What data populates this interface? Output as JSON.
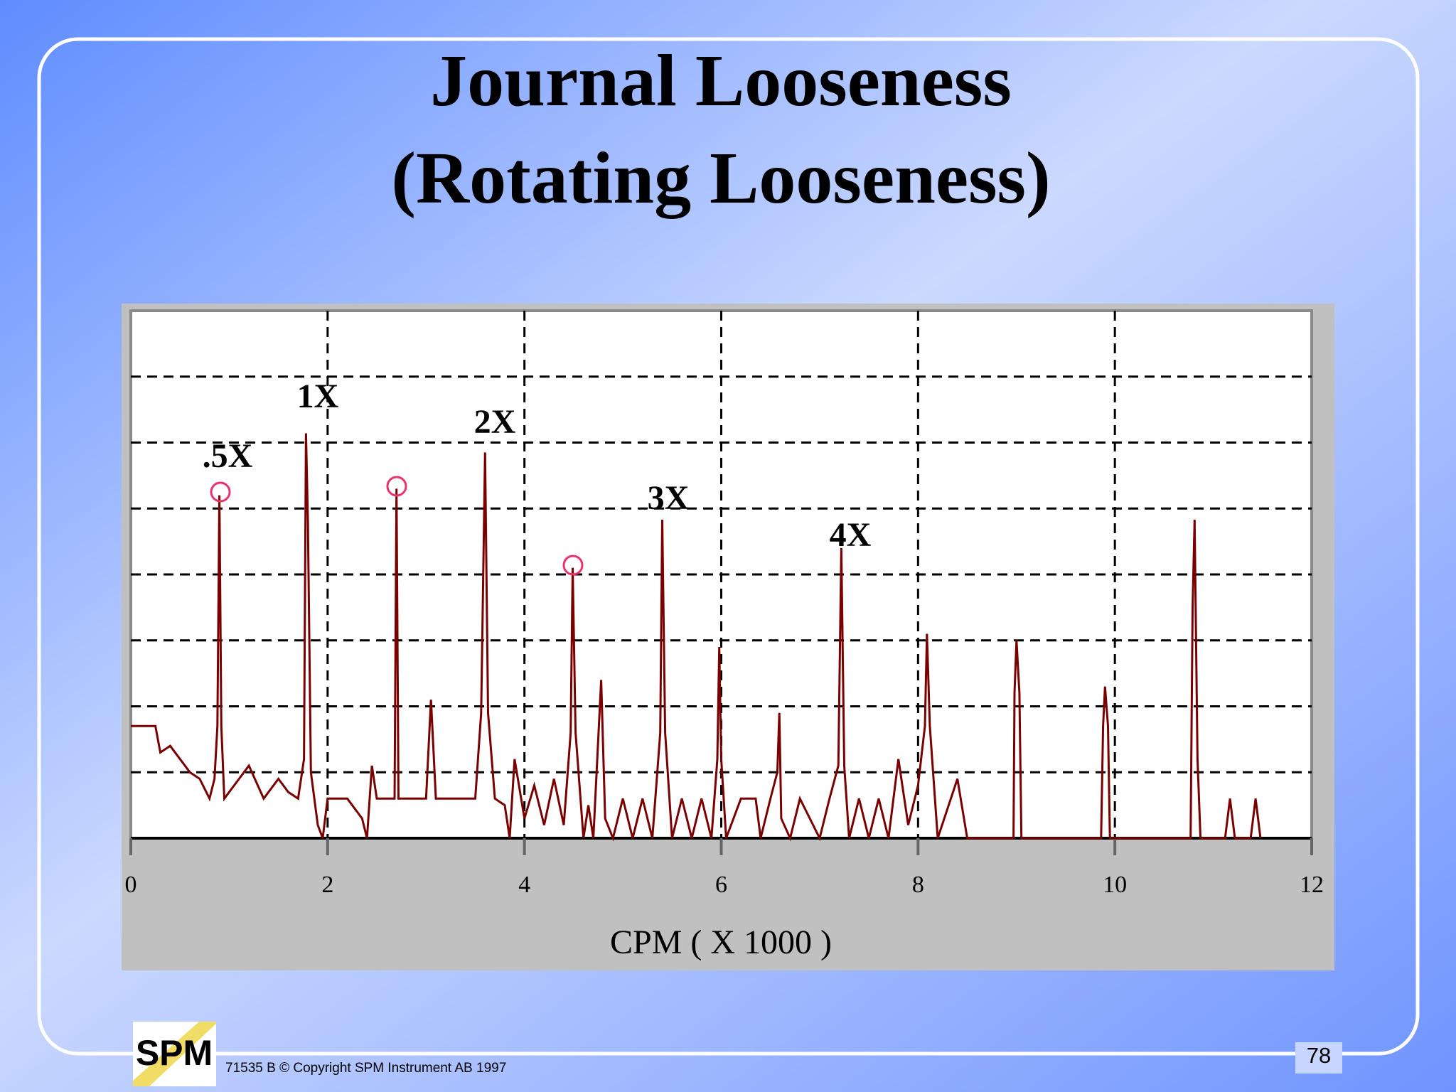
{
  "slide": {
    "title_lines": [
      "Journal  Looseness",
      "(Rotating Looseness)"
    ],
    "logo_text": "SPM",
    "footer": "71535 B  © Copyright SPM Instrument AB 1997",
    "page_number": "78"
  },
  "chart_data": {
    "type": "line",
    "xlabel": "CPM ( X 1000 )",
    "annotations": [
      ".5X",
      "1X",
      "2X",
      "3X",
      "4X"
    ],
    "xlim": [
      0,
      12
    ],
    "xticks": [
      0,
      2,
      4,
      6,
      8,
      10,
      12
    ],
    "ylim": [
      0,
      8
    ],
    "yticks": [
      0,
      1,
      2,
      3,
      4,
      5,
      6,
      7,
      8
    ],
    "grid": true,
    "x": [
      0,
      0.25,
      0.3,
      0.4,
      0.5,
      0.6,
      0.7,
      0.8,
      0.85,
      0.88,
      0.9,
      0.92,
      0.95,
      1.1,
      1.2,
      1.35,
      1.5,
      1.6,
      1.7,
      1.76,
      1.78,
      1.8,
      1.83,
      1.9,
      1.95,
      2.0,
      2.2,
      2.35,
      2.4,
      2.45,
      2.5,
      2.68,
      2.7,
      2.72,
      3.0,
      3.05,
      3.1,
      3.5,
      3.56,
      3.6,
      3.63,
      3.7,
      3.8,
      3.85,
      3.9,
      4.0,
      4.1,
      4.2,
      4.3,
      4.4,
      4.47,
      4.49,
      4.52,
      4.6,
      4.65,
      4.7,
      4.78,
      4.82,
      4.9,
      5.0,
      5.1,
      5.2,
      5.3,
      5.38,
      5.4,
      5.43,
      5.5,
      5.6,
      5.7,
      5.8,
      5.9,
      5.96,
      5.98,
      6.0,
      6.05,
      6.2,
      6.35,
      6.4,
      6.5,
      6.57,
      6.59,
      6.61,
      6.7,
      6.8,
      7.0,
      7.1,
      7.19,
      7.22,
      7.25,
      7.3,
      7.4,
      7.5,
      7.6,
      7.7,
      7.8,
      7.9,
      8.0,
      8.07,
      8.09,
      8.12,
      8.2,
      8.4,
      8.5,
      8.97,
      8.98,
      9.0,
      9.03,
      9.05,
      9.86,
      9.88,
      9.9,
      9.93,
      9.95,
      10.77,
      10.79,
      10.81,
      10.84,
      10.87,
      11.12,
      11.17,
      11.22,
      11.38,
      11.43,
      11.48
    ],
    "series": [
      {
        "color": "#7a0000",
        "values": [
          1.7,
          1.7,
          1.3,
          1.4,
          1.2,
          1.0,
          0.9,
          0.6,
          0.9,
          1.7,
          5.2,
          1.7,
          0.6,
          0.9,
          1.1,
          0.6,
          0.9,
          0.7,
          0.6,
          1.2,
          6.14,
          4.8,
          1.0,
          0.2,
          0,
          0.6,
          0.6,
          0.3,
          0,
          1.1,
          0.6,
          0.6,
          5.3,
          0.6,
          0.6,
          2.1,
          0.6,
          0.6,
          1.9,
          5.85,
          1.9,
          0.6,
          0.5,
          0,
          1.2,
          0.3,
          0.8,
          0.2,
          0.9,
          0.2,
          1.6,
          4.1,
          1.6,
          0,
          0.5,
          0,
          2.4,
          0.3,
          0,
          0.6,
          0,
          0.6,
          0,
          1.6,
          4.83,
          1.6,
          0,
          0.6,
          0,
          0.6,
          0,
          1.2,
          2.9,
          1.2,
          0,
          0.6,
          0.6,
          0,
          0.6,
          1.0,
          1.9,
          0.3,
          0,
          0.6,
          0,
          0.6,
          1.1,
          4.4,
          1.1,
          0,
          0.6,
          0,
          0.6,
          0,
          1.2,
          0.2,
          0.8,
          1.7,
          3.1,
          1.7,
          0,
          0.9,
          0,
          0,
          2.2,
          3.0,
          2.2,
          0,
          0,
          1.7,
          2.3,
          1.7,
          0,
          0,
          3.5,
          4.83,
          1.2,
          0,
          0,
          0.6,
          0,
          0,
          0.6,
          0
        ]
      }
    ]
  }
}
